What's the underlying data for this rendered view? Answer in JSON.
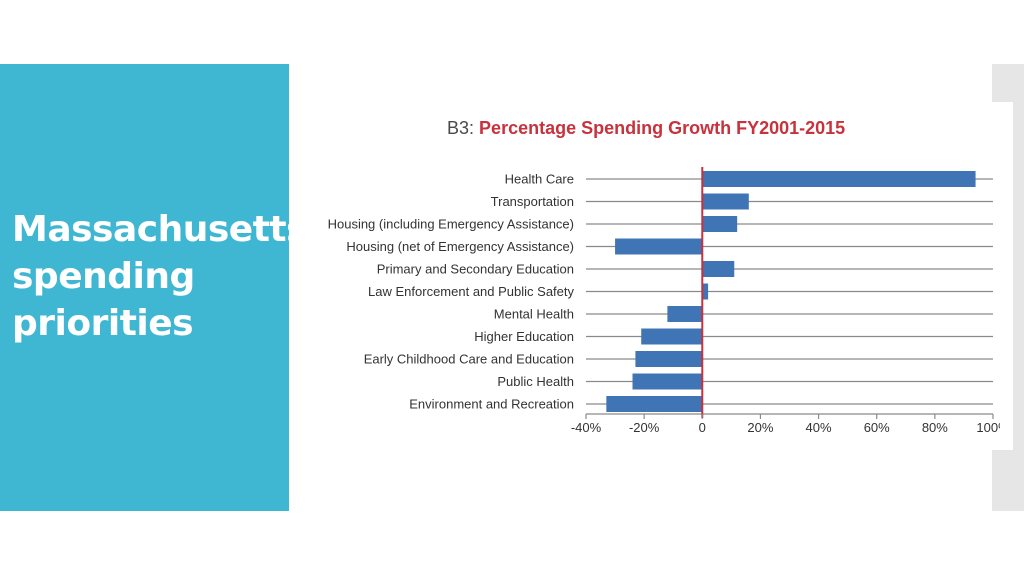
{
  "slide": {
    "title_lines": [
      "Massachusetts",
      "spending",
      "priorities"
    ]
  },
  "colors": {
    "panel": "#3fb7d3",
    "bar": "#3f74b5",
    "zero_line": "#c8323c",
    "title_accent": "#c8323c"
  },
  "chart_data": {
    "type": "bar",
    "orientation": "horizontal",
    "title_prefix": "B3:",
    "title": "Percentage Spending Growth FY2001-2015",
    "categories": [
      "Health Care",
      "Transportation",
      "Housing (including Emergency Assistance)",
      "Housing (net of Emergency Assistance)",
      "Primary and Secondary Education",
      "Law Enforcement and Public Safety",
      "Mental Health",
      "Higher Education",
      "Early Childhood Care and Education",
      "Public Health",
      "Environment and Recreation"
    ],
    "values": [
      94,
      16,
      12,
      -30,
      11,
      2,
      -12,
      -21,
      -23,
      -24,
      -33
    ],
    "xlim": [
      -40,
      100
    ],
    "ticks": [
      -40,
      -20,
      0,
      20,
      40,
      60,
      80,
      100
    ],
    "tick_labels": [
      "-40%",
      "-20%",
      "0",
      "20%",
      "40%",
      "60%",
      "80%",
      "100%"
    ],
    "xlabel": "",
    "ylabel": "",
    "grid": "horizontal"
  }
}
